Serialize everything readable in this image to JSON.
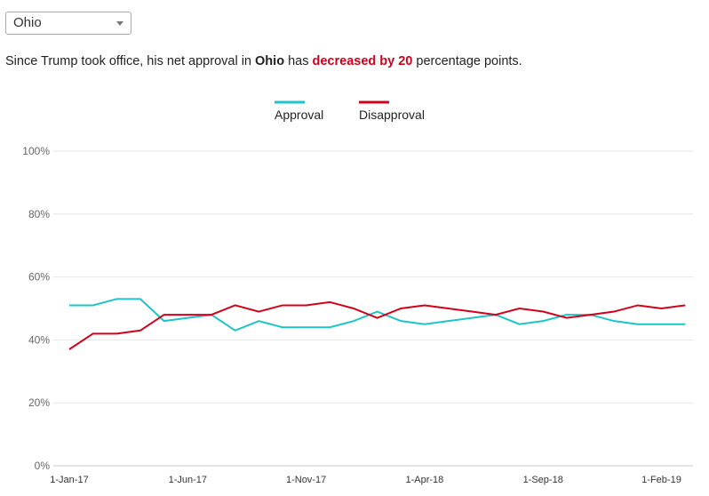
{
  "state_select": {
    "value": "Ohio"
  },
  "summary": {
    "prefix": "Since Trump took office, his net approval in ",
    "state": "Ohio",
    "mid": " has ",
    "change": "decreased by 20",
    "suffix": " percentage points."
  },
  "chart_data": {
    "type": "line",
    "title": "",
    "xlabel": "",
    "ylabel": "",
    "ylim": [
      0,
      100
    ],
    "y_ticks": [
      "0%",
      "20%",
      "40%",
      "60%",
      "80%",
      "100%"
    ],
    "x_ticks": [
      "1-Jan-17",
      "1-Jun-17",
      "1-Nov-17",
      "1-Apr-18",
      "1-Sep-18",
      "1-Feb-19"
    ],
    "x_tick_index": [
      0,
      5,
      10,
      15,
      20,
      25
    ],
    "x": [
      "Jan-17",
      "Feb-17",
      "Mar-17",
      "Apr-17",
      "May-17",
      "Jun-17",
      "Jul-17",
      "Aug-17",
      "Sep-17",
      "Oct-17",
      "Nov-17",
      "Dec-17",
      "Jan-18",
      "Feb-18",
      "Mar-18",
      "Apr-18",
      "May-18",
      "Jun-18",
      "Jul-18",
      "Aug-18",
      "Sep-18",
      "Oct-18",
      "Nov-18",
      "Dec-18",
      "Jan-19",
      "Feb-19",
      "Mar-19"
    ],
    "legend_placement": "top-center",
    "series": [
      {
        "name": "Approval",
        "color": "#1ec4c8",
        "values": [
          51,
          51,
          53,
          53,
          46,
          47,
          48,
          43,
          46,
          44,
          44,
          44,
          46,
          49,
          46,
          45,
          46,
          47,
          48,
          45,
          46,
          48,
          48,
          46,
          45,
          45,
          45
        ]
      },
      {
        "name": "Disapproval",
        "color": "#d0021b",
        "values": [
          37,
          42,
          42,
          43,
          48,
          48,
          48,
          51,
          49,
          51,
          51,
          52,
          50,
          47,
          50,
          51,
          50,
          49,
          48,
          50,
          49,
          47,
          48,
          49,
          51,
          50,
          51
        ]
      }
    ]
  }
}
